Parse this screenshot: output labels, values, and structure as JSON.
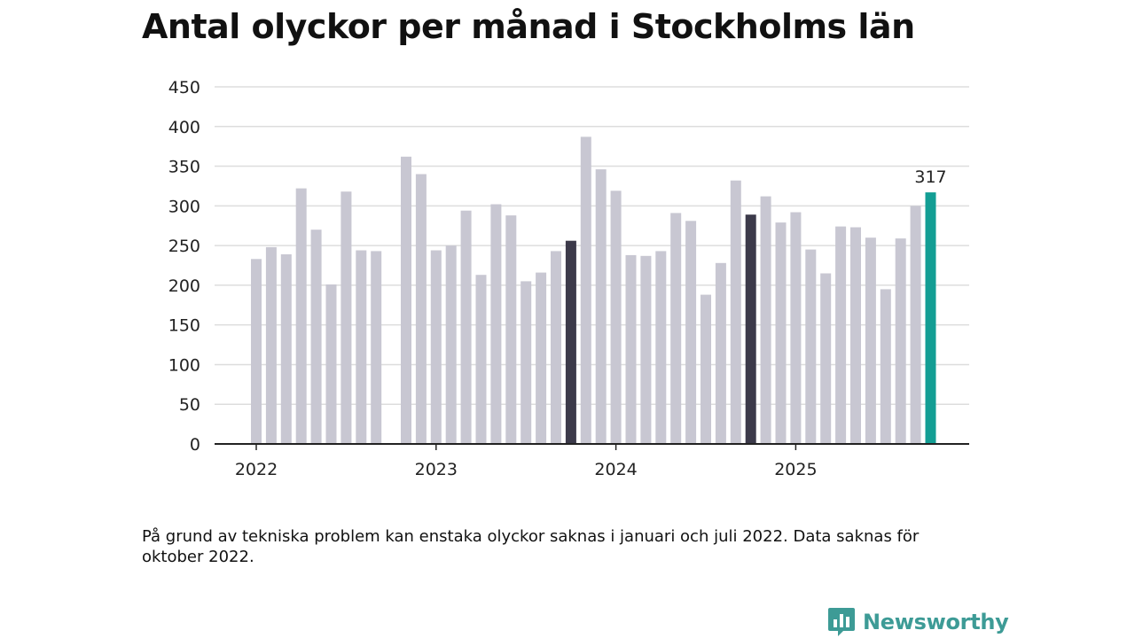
{
  "title": "Antal olyckor per månad i Stockholms län",
  "footnote": "På grund av tekniska problem kan enstaka olyckor saknas i januari och juli 2022. Data saknas för oktober 2022.",
  "brand": "Newsworthy",
  "colors": {
    "bar_default": "#c8c7d2",
    "bar_highlight_dark": "#3c3a4a",
    "bar_latest": "#139e94",
    "grid": "#dddddd",
    "axis": "#222222",
    "brand": "#3d9b96"
  },
  "chart_data": {
    "type": "bar",
    "title": "Antal olyckor per månad i Stockholms län",
    "xlabel": "",
    "ylabel": "",
    "ylim": [
      0,
      450
    ],
    "yticks": [
      0,
      50,
      100,
      150,
      200,
      250,
      300,
      350,
      400,
      450
    ],
    "xtick_labels": [
      "2022",
      "2023",
      "2024",
      "2025"
    ],
    "grid": true,
    "legend": "none",
    "categories": [
      "2022-01",
      "2022-02",
      "2022-03",
      "2022-04",
      "2022-05",
      "2022-06",
      "2022-07",
      "2022-08",
      "2022-09",
      "2022-10",
      "2022-11",
      "2022-12",
      "2023-01",
      "2023-02",
      "2023-03",
      "2023-04",
      "2023-05",
      "2023-06",
      "2023-07",
      "2023-08",
      "2023-09",
      "2023-10",
      "2023-11",
      "2023-12",
      "2024-01",
      "2024-02",
      "2024-03",
      "2024-04",
      "2024-05",
      "2024-06",
      "2024-07",
      "2024-08",
      "2024-09",
      "2024-10",
      "2024-11",
      "2024-12",
      "2025-01",
      "2025-02",
      "2025-03",
      "2025-04",
      "2025-05",
      "2025-06",
      "2025-07",
      "2025-08",
      "2025-09",
      "2025-10"
    ],
    "values": [
      233,
      248,
      239,
      322,
      270,
      201,
      318,
      244,
      243,
      null,
      362,
      340,
      244,
      250,
      294,
      213,
      302,
      288,
      205,
      216,
      243,
      256,
      387,
      346,
      319,
      238,
      237,
      243,
      291,
      281,
      188,
      228,
      332,
      289,
      312,
      279,
      292,
      245,
      215,
      274,
      273,
      260,
      195,
      259,
      300,
      317
    ],
    "highlight": {
      "dark": [
        "2023-10",
        "2024-10"
      ],
      "latest": "2025-10"
    },
    "data_labels": [
      {
        "category": "2025-10",
        "text": "317"
      }
    ]
  }
}
